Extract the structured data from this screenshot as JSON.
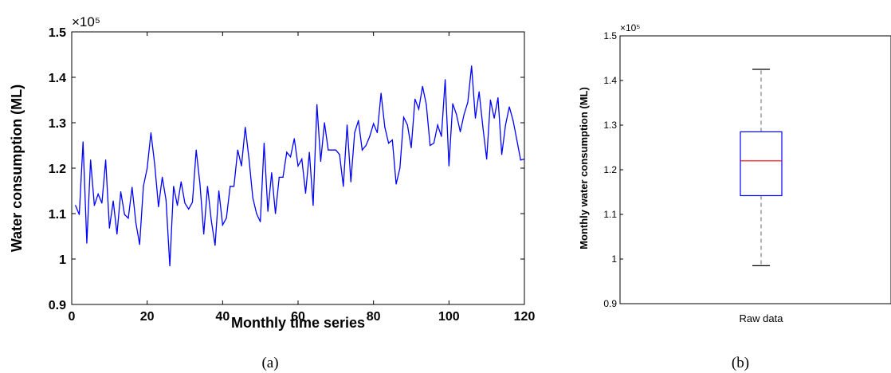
{
  "chart_data": [
    {
      "type": "line",
      "panel_label": "(a)",
      "xlabel": "Monthly time series",
      "ylabel": "Water consumption (ML)",
      "exponent_label": "×10⁵",
      "xlim": [
        0,
        120
      ],
      "ylim": [
        0.9,
        1.5
      ],
      "xticks": [
        "0",
        "20",
        "40",
        "60",
        "80",
        "100",
        "120"
      ],
      "yticks": [
        "0.9",
        "1",
        "1.1",
        "1.2",
        "1.3",
        "1.4",
        "1.5"
      ],
      "grid": false,
      "series": [
        {
          "color": "#0000ff",
          "x": [
            1,
            2,
            3,
            4,
            5,
            6,
            7,
            8,
            9,
            10,
            11,
            12,
            13,
            14,
            15,
            16,
            17,
            18,
            19,
            20,
            21,
            22,
            23,
            24,
            25,
            26,
            27,
            28,
            29,
            30,
            31,
            32,
            33,
            34,
            35,
            36,
            37,
            38,
            39,
            40,
            41,
            42,
            43,
            44,
            45,
            46,
            47,
            48,
            49,
            50,
            51,
            52,
            53,
            54,
            55,
            56,
            57,
            58,
            59,
            60,
            61,
            62,
            63,
            64,
            65,
            66,
            67,
            68,
            69,
            70,
            71,
            72,
            73,
            74,
            75,
            76,
            77,
            78,
            79,
            80,
            81,
            82,
            83,
            84,
            85,
            86,
            87,
            88,
            89,
            90,
            91,
            92,
            93,
            94,
            95,
            96,
            97,
            98,
            99,
            100,
            101,
            102,
            103,
            104,
            105,
            106,
            107,
            108,
            109,
            110,
            111,
            112,
            113,
            114,
            115,
            116,
            117,
            118,
            119,
            120
          ],
          "y": [
            1.118,
            1.098,
            1.258,
            1.035,
            1.218,
            1.118,
            1.143,
            1.123,
            1.218,
            1.068,
            1.128,
            1.055,
            1.148,
            1.098,
            1.09,
            1.158,
            1.08,
            1.032,
            1.16,
            1.2,
            1.278,
            1.208,
            1.115,
            1.18,
            1.13,
            0.985,
            1.16,
            1.118,
            1.17,
            1.123,
            1.11,
            1.125,
            1.24,
            1.165,
            1.055,
            1.16,
            1.085,
            1.03,
            1.15,
            1.075,
            1.09,
            1.16,
            1.16,
            1.24,
            1.205,
            1.29,
            1.22,
            1.135,
            1.1,
            1.082,
            1.255,
            1.105,
            1.19,
            1.1,
            1.18,
            1.18,
            1.235,
            1.225,
            1.265,
            1.205,
            1.22,
            1.145,
            1.235,
            1.118,
            1.34,
            1.215,
            1.3,
            1.24,
            1.24,
            1.24,
            1.23,
            1.16,
            1.295,
            1.17,
            1.278,
            1.305,
            1.24,
            1.25,
            1.27,
            1.298,
            1.278,
            1.365,
            1.29,
            1.255,
            1.262,
            1.165,
            1.2,
            1.312,
            1.295,
            1.245,
            1.352,
            1.33,
            1.38,
            1.34,
            1.25,
            1.255,
            1.295,
            1.27,
            1.395,
            1.205,
            1.342,
            1.318,
            1.28,
            1.318,
            1.345,
            1.425,
            1.31,
            1.368,
            1.29,
            1.22,
            1.35,
            1.31,
            1.355,
            1.23,
            1.295,
            1.335,
            1.305,
            1.262,
            1.218,
            1.22
          ]
        }
      ]
    },
    {
      "type": "box",
      "panel_label": "(b)",
      "category": "Raw data",
      "ylabel": "Monthly water consumption (ML)",
      "exponent_label": "×10⁵",
      "ylim": [
        0.9,
        1.5
      ],
      "yticks": [
        "0.9",
        "1",
        "1.1",
        "1.2",
        "1.3",
        "1.4",
        "1.5"
      ],
      "whisker_low": 0.985,
      "q1": 1.142,
      "median": 1.22,
      "q3": 1.285,
      "whisker_high": 1.425,
      "box_color": "#0000ff",
      "median_color": "#ff0000",
      "whisker_color": "#808080"
    }
  ]
}
